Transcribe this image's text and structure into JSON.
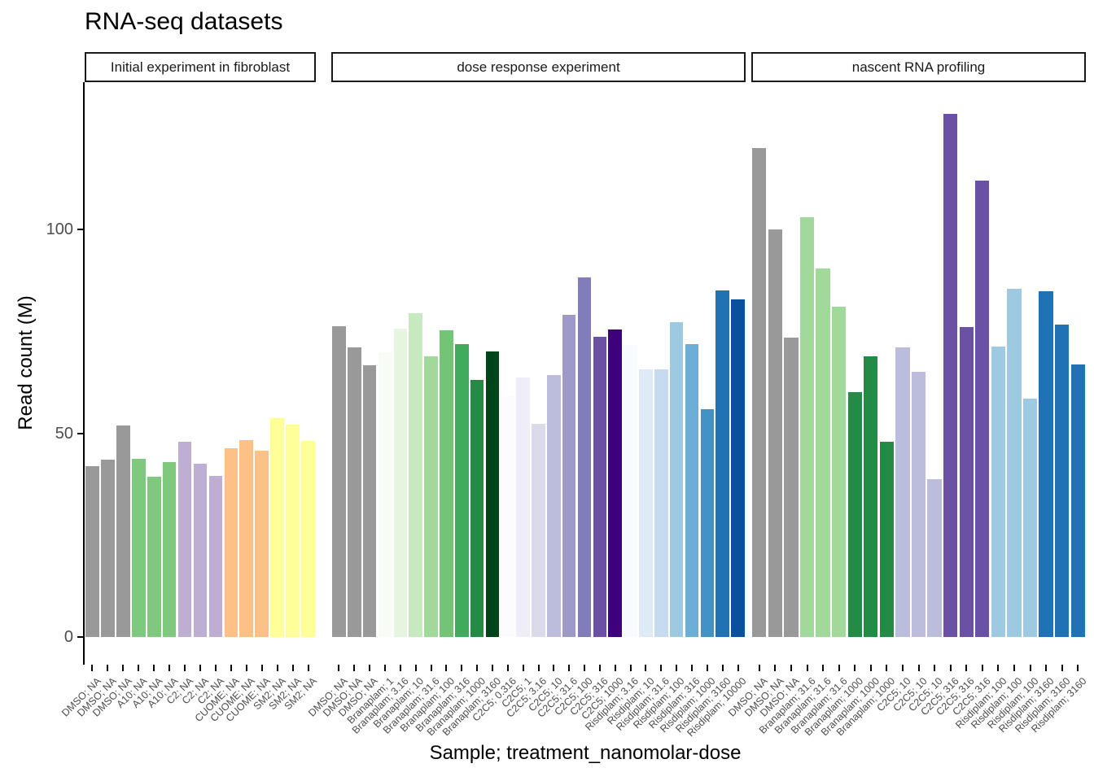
{
  "chart_data": {
    "type": "bar",
    "title": "RNA-seq datasets",
    "xlabel": "Sample; treatment_nanomolar-dose",
    "ylabel": "Read count (M)",
    "yticks": [
      0,
      50,
      100
    ],
    "ylim": [
      0,
      134
    ],
    "grid": false,
    "legend": "none",
    "facets": [
      {
        "label": "Initial experiment in fibroblast",
        "bars": [
          {
            "label": "DMSO; NA",
            "value": 42.0,
            "color": "#999999"
          },
          {
            "label": "DMSO; NA",
            "value": 43.5,
            "color": "#999999"
          },
          {
            "label": "DMSO; NA",
            "value": 51.8,
            "color": "#999999"
          },
          {
            "label": "A10; NA",
            "value": 43.7,
            "color": "#7FC97F"
          },
          {
            "label": "A10; NA",
            "value": 39.4,
            "color": "#7FC97F"
          },
          {
            "label": "A10; NA",
            "value": 42.9,
            "color": "#7FC97F"
          },
          {
            "label": "C2; NA",
            "value": 47.9,
            "color": "#BEAED4"
          },
          {
            "label": "C2; NA",
            "value": 42.5,
            "color": "#BEAED4"
          },
          {
            "label": "C2; NA",
            "value": 39.5,
            "color": "#BEAED4"
          },
          {
            "label": "CUOME; NA",
            "value": 46.3,
            "color": "#FDC086"
          },
          {
            "label": "CUOME; NA",
            "value": 48.3,
            "color": "#FDC086"
          },
          {
            "label": "CUOME; NA",
            "value": 45.7,
            "color": "#FDC086"
          },
          {
            "label": "SM2; NA",
            "value": 53.7,
            "color": "#FFFF99"
          },
          {
            "label": "SM2; NA",
            "value": 52.0,
            "color": "#FFFF99"
          },
          {
            "label": "SM2; NA",
            "value": 48.1,
            "color": "#FFFF99"
          }
        ]
      },
      {
        "label": "dose response experiment",
        "bars": [
          {
            "label": "DMSO; NA",
            "value": 76.2,
            "color": "#999999"
          },
          {
            "label": "DMSO; NA",
            "value": 71.0,
            "color": "#999999"
          },
          {
            "label": "DMSO; NA",
            "value": 66.6,
            "color": "#999999"
          },
          {
            "label": "Branaplam; 1",
            "value": 69.8,
            "color": "#F7FCF5"
          },
          {
            "label": "Branaplam; 3.16",
            "value": 75.7,
            "color": "#E5F5E0"
          },
          {
            "label": "Branaplam; 10",
            "value": 79.4,
            "color": "#C7E9C0"
          },
          {
            "label": "Branaplam; 31.6",
            "value": 68.9,
            "color": "#A1D99B"
          },
          {
            "label": "Branaplam; 100",
            "value": 75.2,
            "color": "#74C476"
          },
          {
            "label": "Branaplam; 316",
            "value": 71.8,
            "color": "#41AB5D"
          },
          {
            "label": "Branaplam; 1000",
            "value": 63.0,
            "color": "#238B45"
          },
          {
            "label": "Branaplam; 3160",
            "value": 70.1,
            "color": "#00441B"
          },
          {
            "label": "C2C5; 0.316",
            "value": 59.1,
            "color": "#FCFBFD"
          },
          {
            "label": "C2C5; 1",
            "value": 63.6,
            "color": "#EFEDF5"
          },
          {
            "label": "C2C5; 3.16",
            "value": 52.3,
            "color": "#DADAEB"
          },
          {
            "label": "C2C5; 10",
            "value": 64.2,
            "color": "#BCBDDC"
          },
          {
            "label": "C2C5; 31.6",
            "value": 79.1,
            "color": "#9E9AC8"
          },
          {
            "label": "C2C5; 100",
            "value": 88.2,
            "color": "#807DBA"
          },
          {
            "label": "C2C5; 316",
            "value": 73.6,
            "color": "#6A51A3"
          },
          {
            "label": "C2C5; 1000",
            "value": 75.5,
            "color": "#3F007D"
          },
          {
            "label": "Risdiplam; 3.16",
            "value": 71.6,
            "color": "#F7FBFF"
          },
          {
            "label": "Risdiplam; 10",
            "value": 65.6,
            "color": "#DEEBF7"
          },
          {
            "label": "Risdiplam; 31.6",
            "value": 65.6,
            "color": "#C6DBEF"
          },
          {
            "label": "Risdiplam; 100",
            "value": 77.2,
            "color": "#9ECAE1"
          },
          {
            "label": "Risdiplam; 316",
            "value": 71.9,
            "color": "#6BAED6"
          },
          {
            "label": "Risdiplam; 1000",
            "value": 55.9,
            "color": "#4292C6"
          },
          {
            "label": "Risdiplam; 3160",
            "value": 85.1,
            "color": "#2171B5"
          },
          {
            "label": "Risdiplam; 10000",
            "value": 82.9,
            "color": "#08519C"
          }
        ]
      },
      {
        "label": "nascent RNA profiling",
        "bars": [
          {
            "label": "DMSO; NA",
            "value": 120.0,
            "color": "#999999"
          },
          {
            "label": "DMSO; NA",
            "value": 100.0,
            "color": "#999999"
          },
          {
            "label": "DMSO; NA",
            "value": 73.5,
            "color": "#999999"
          },
          {
            "label": "Branaplam; 31.6",
            "value": 103.0,
            "color": "#A1D99B"
          },
          {
            "label": "Branaplam; 31.6",
            "value": 90.4,
            "color": "#A1D99B"
          },
          {
            "label": "Branaplam; 31.6",
            "value": 81.0,
            "color": "#A1D99B"
          },
          {
            "label": "Branaplam; 1000",
            "value": 60.1,
            "color": "#238B45"
          },
          {
            "label": "Branaplam; 1000",
            "value": 68.9,
            "color": "#238B45"
          },
          {
            "label": "Branaplam; 1000",
            "value": 48.0,
            "color": "#238B45"
          },
          {
            "label": "C2C5; 10",
            "value": 71.1,
            "color": "#BCBDDC"
          },
          {
            "label": "C2C5; 10",
            "value": 65.1,
            "color": "#BCBDDC"
          },
          {
            "label": "C2C5; 10",
            "value": 38.7,
            "color": "#BCBDDC"
          },
          {
            "label": "C2C5; 316",
            "value": 128.3,
            "color": "#6A51A3"
          },
          {
            "label": "C2C5; 316",
            "value": 76.0,
            "color": "#6A51A3"
          },
          {
            "label": "C2C5; 316",
            "value": 112.0,
            "color": "#6A51A3"
          },
          {
            "label": "Risdiplam; 100",
            "value": 71.3,
            "color": "#9ECAE1"
          },
          {
            "label": "Risdiplam; 100",
            "value": 85.4,
            "color": "#9ECAE1"
          },
          {
            "label": "Risdiplam; 100",
            "value": 58.5,
            "color": "#9ECAE1"
          },
          {
            "label": "Risdiplam; 3160",
            "value": 84.9,
            "color": "#2171B5"
          },
          {
            "label": "Risdiplam; 3160",
            "value": 76.6,
            "color": "#2171B5"
          },
          {
            "label": "Risdiplam; 3160",
            "value": 66.9,
            "color": "#2171B5"
          }
        ]
      }
    ]
  }
}
